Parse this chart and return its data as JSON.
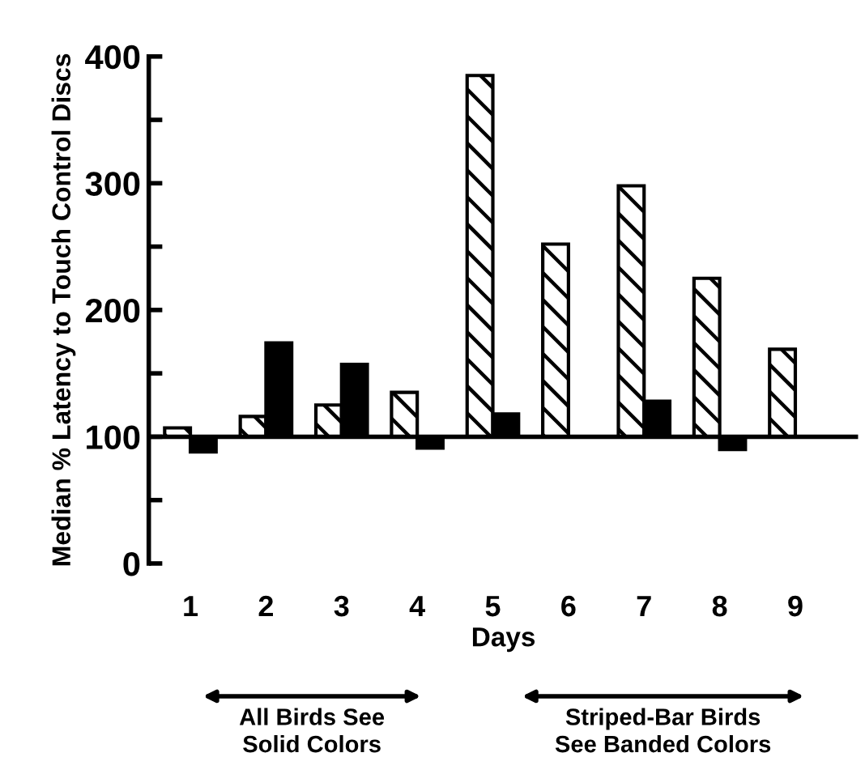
{
  "chart_data": {
    "type": "bar",
    "ylabel": "Median % Latency to Touch Control Discs",
    "xlabel": "Days",
    "categories": [
      "1",
      "2",
      "3",
      "4",
      "5",
      "6",
      "7",
      "8",
      "9"
    ],
    "series": [
      {
        "color": "#000000",
        "base": [
          100,
          100,
          100,
          100,
          100,
          100,
          100,
          100,
          100
        ],
        "values": [
          7,
          16,
          25,
          35,
          285,
          152,
          198,
          125,
          69
        ]
      },
      {
        "color": "#000000",
        "base": [
          100,
          100,
          100,
          100,
          100,
          null,
          100,
          100,
          null
        ],
        "values": [
          -12,
          74,
          57,
          -9,
          18,
          null,
          28,
          -10,
          null
        ]
      }
    ],
    "ylim": [
      0,
      400
    ],
    "yticks": [
      0,
      {
        "value": 50,
        "label": null
      },
      100,
      {
        "value": 150,
        "label": null
      },
      200,
      {
        "value": 250,
        "label": null
      },
      300,
      {
        "value": 350,
        "label": null
      },
      400
    ],
    "ref_lines": [
      {
        "axis": "y",
        "value": 100,
        "label": null,
        "color": "#000000"
      }
    ],
    "annotations": [
      "All Birds See\nSolid Colors",
      "Striped-Bar Birds\nSee Banded Colors"
    ],
    "grid": false,
    "legend": false
  }
}
